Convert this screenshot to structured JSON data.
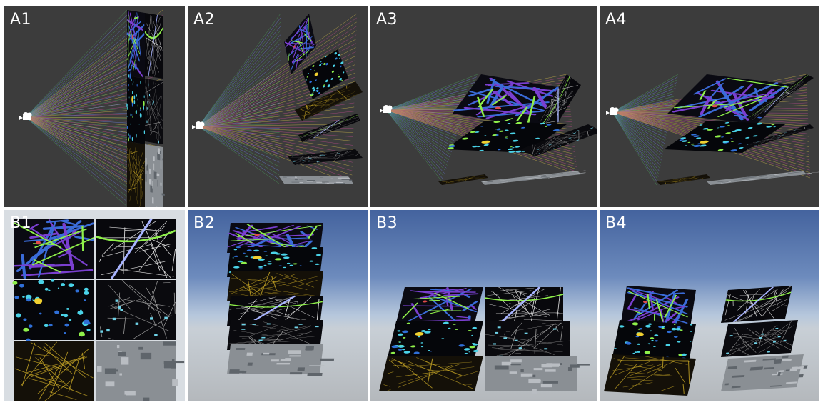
{
  "panels": {
    "A1": "A1",
    "A2": "A2",
    "A3": "A3",
    "A4": "A4",
    "B1": "B1",
    "B2": "B2",
    "B3": "B3",
    "B4": "B4"
  },
  "colors": {
    "dark_bg": "#3c3c3c",
    "map_bg": "#0a0a12",
    "street_blue": "#3a6bd8",
    "street_purple": "#7a3fd0",
    "heat_cyan": "#4ad3e8",
    "heat_green": "#8ff04a",
    "night_yellow": "#c9a826",
    "road_white": "#d8d8d8",
    "satellite_gray": "#8a8f94",
    "accent_red": "#e04a4a",
    "ray_colors": [
      "#4a9d5a",
      "#c8b24a",
      "#6a7fd8",
      "#b54a8a"
    ]
  },
  "icons": {
    "camera": "camera-icon"
  }
}
